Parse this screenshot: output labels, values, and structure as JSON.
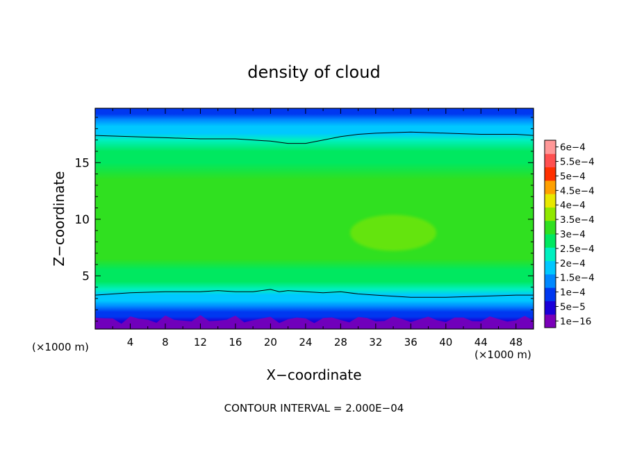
{
  "chart_data": {
    "type": "heatmap",
    "title": "density of cloud",
    "xlabel": "X−coordinate",
    "ylabel": "Z−coordinate",
    "x_unit_left": "(×1000 m)",
    "x_unit_right": "(×1000 m)",
    "footer": "CONTOUR INTERVAL = 2.000E−04",
    "xlim": [
      0,
      50
    ],
    "ylim": [
      0.3,
      19.8
    ],
    "x_ticks": [
      4,
      8,
      12,
      16,
      20,
      24,
      28,
      32,
      36,
      40,
      44,
      48
    ],
    "x_tick_labels": [
      "4",
      "8",
      "12",
      "16",
      "20",
      "24",
      "28",
      "32",
      "36",
      "40",
      "44",
      "48"
    ],
    "y_ticks": [
      5,
      10,
      15
    ],
    "y_tick_labels": [
      "5",
      "10",
      "15"
    ],
    "colorbar": {
      "levels": [
        1e-16,
        5e-05,
        0.0001,
        0.00015,
        0.0002,
        0.00025,
        0.0003,
        0.00035,
        0.0004,
        0.00045,
        0.0005,
        0.00055,
        0.0006
      ],
      "labels": [
        "1e−16",
        "5e−5",
        "1e−4",
        "1.5e−4",
        "2e−4",
        "2.5e−4",
        "3e−4",
        "3.5e−4",
        "4e−4",
        "4.5e−4",
        "5e−4",
        "5.5e−4",
        "6e−4"
      ],
      "colors": [
        "#7a00b8",
        "#1a00d8",
        "#0038f0",
        "#0088ff",
        "#00c8ff",
        "#00f0c0",
        "#00e860",
        "#30e020",
        "#90e800",
        "#e8e800",
        "#ffa000",
        "#ff3000",
        "#ff5050",
        "#ff9898"
      ]
    },
    "profile_z": [
      0.3,
      1.0,
      1.4,
      1.8,
      2.3,
      2.8,
      3.3,
      3.8,
      4.5,
      5.5,
      6.5,
      7.5,
      8.5,
      10.0,
      12.0,
      13.5,
      15.0,
      16.0,
      17.0,
      17.6,
      18.2,
      18.8,
      19.3,
      19.8
    ],
    "profile_density": [
      2e-05,
      3e-05,
      6e-05,
      9e-05,
      0.00012,
      0.00015,
      0.00018,
      0.00021,
      0.00025,
      0.000275,
      0.0003,
      0.00032,
      0.00033,
      0.000335,
      0.000325,
      0.000305,
      0.00028,
      0.00025,
      0.000215,
      0.000185,
      0.00015,
      0.00012,
      8e-05,
      5e-05
    ],
    "contours": [
      {
        "level": 0.0002,
        "x": [
          0,
          4,
          8,
          12,
          16,
          20,
          22,
          24,
          26,
          28,
          30,
          32,
          36,
          40,
          44,
          48,
          50
        ],
        "z": [
          17.4,
          17.3,
          17.2,
          17.1,
          17.1,
          16.9,
          16.7,
          16.7,
          17.0,
          17.3,
          17.5,
          17.6,
          17.7,
          17.6,
          17.5,
          17.5,
          17.4
        ]
      },
      {
        "level": 0.0002,
        "x": [
          0,
          4,
          8,
          12,
          14,
          16,
          18,
          20,
          21,
          22,
          24,
          26,
          28,
          30,
          32,
          36,
          40,
          44,
          48,
          50
        ],
        "z": [
          3.3,
          3.5,
          3.6,
          3.6,
          3.7,
          3.6,
          3.6,
          3.8,
          3.6,
          3.7,
          3.6,
          3.5,
          3.6,
          3.4,
          3.3,
          3.1,
          3.1,
          3.2,
          3.3,
          3.3
        ]
      }
    ],
    "max_blob": {
      "x": 34,
      "z": 8.8,
      "density": 0.00036
    }
  }
}
